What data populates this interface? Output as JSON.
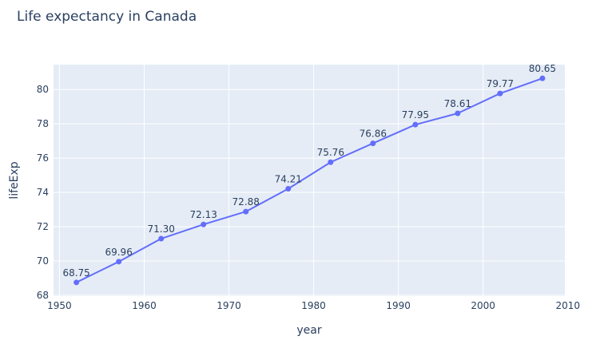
{
  "chart_data": {
    "type": "line",
    "title": "Life expectancy in Canada",
    "xlabel": "year",
    "ylabel": "lifeExp",
    "x": [
      1952,
      1957,
      1962,
      1967,
      1972,
      1977,
      1982,
      1987,
      1992,
      1997,
      2002,
      2007
    ],
    "series": [
      {
        "values": [
          68.75,
          69.96,
          71.3,
          72.13,
          72.88,
          74.21,
          75.76,
          76.86,
          77.95,
          78.61,
          79.77,
          80.65
        ],
        "labels": [
          "68.75",
          "69.96",
          "71.30",
          "72.13",
          "72.88",
          "74.21",
          "75.76",
          "76.86",
          "77.95",
          "78.61",
          "79.77",
          "80.65"
        ]
      }
    ],
    "xlim": [
      1949.3,
      2009.65
    ],
    "ylim": [
      67.95,
      81.45
    ],
    "x_ticks": [
      1950,
      1960,
      1970,
      1980,
      1990,
      2000,
      2010
    ],
    "x_tick_labels": [
      "1950",
      "1960",
      "1970",
      "1980",
      "1990",
      "2000",
      "2010"
    ],
    "y_ticks": [
      68,
      70,
      72,
      74,
      76,
      78,
      80
    ],
    "y_tick_labels": [
      "68",
      "70",
      "72",
      "74",
      "76",
      "78",
      "80"
    ],
    "grid": true,
    "legend": "none",
    "colors": {
      "line": "#636efa",
      "plot_background": "#e5ecf6",
      "grid": "#ffffff",
      "text": "#2a3f5f"
    }
  }
}
